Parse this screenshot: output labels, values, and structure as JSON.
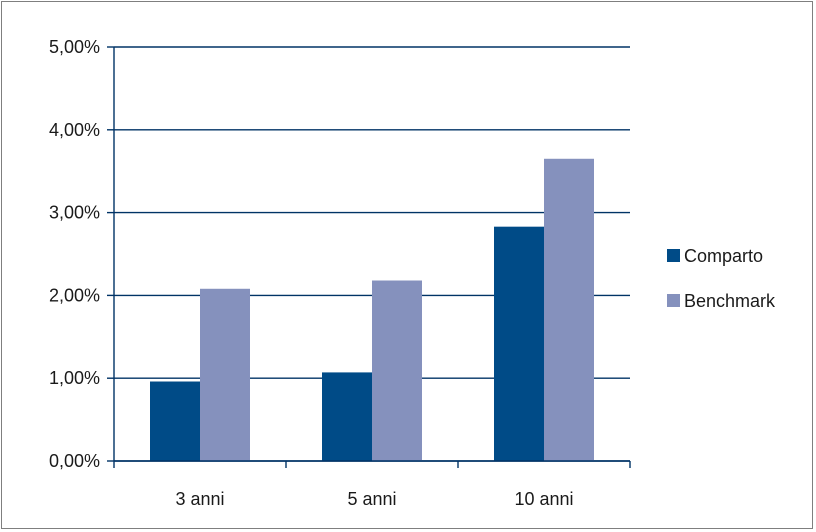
{
  "chart_data": {
    "type": "bar",
    "categories": [
      "3 anni",
      "5 anni",
      "10 anni"
    ],
    "series": [
      {
        "name": "Comparto",
        "values": [
          0.96,
          1.07,
          2.83
        ],
        "color": "#004b87"
      },
      {
        "name": "Benchmark",
        "values": [
          2.08,
          2.18,
          3.65
        ],
        "color": "#8591bd"
      }
    ],
    "ylim": [
      0,
      5
    ],
    "yticks": [
      0,
      1,
      2,
      3,
      4,
      5
    ],
    "ytick_labels": [
      "0,00%",
      "1,00%",
      "2,00%",
      "3,00%",
      "4,00%",
      "5,00%"
    ],
    "grid": true,
    "legend_position": "right",
    "axis_color": "#003366"
  }
}
